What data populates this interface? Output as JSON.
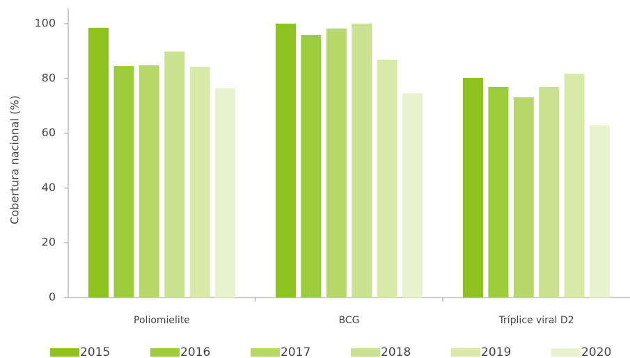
{
  "chart_data": {
    "type": "bar",
    "y_label": "Cobertura nacional (%)",
    "categories": [
      "Poliomielite",
      "BCG",
      "Tríplice viral D2"
    ],
    "series": [
      {
        "name": "2015",
        "color": "#8dc21f",
        "values": [
          98.5,
          100,
          80.2
        ]
      },
      {
        "name": "2016",
        "color": "#9ccb3b",
        "values": [
          84.5,
          95.9,
          76.9
        ]
      },
      {
        "name": "2017",
        "color": "#b7d868",
        "values": [
          84.8,
          98.2,
          73.1
        ]
      },
      {
        "name": "2018",
        "color": "#cbe391",
        "values": [
          89.8,
          100,
          76.9
        ]
      },
      {
        "name": "2019",
        "color": "#d9eaa8",
        "values": [
          84.3,
          86.8,
          81.7
        ]
      },
      {
        "name": "2020",
        "color": "#e9f3d0",
        "values": [
          76.4,
          74.6,
          62.9
        ]
      }
    ],
    "ylim": [
      0,
      100
    ],
    "yticks": [
      0,
      20,
      40,
      60,
      80,
      100
    ],
    "legend": "bottom"
  }
}
